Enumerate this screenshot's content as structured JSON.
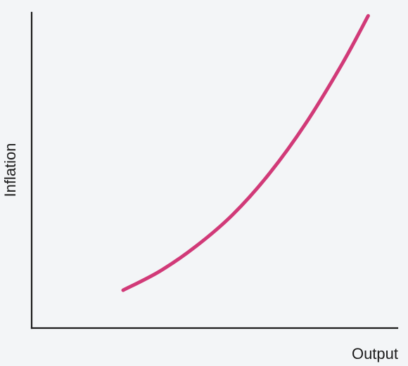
{
  "chart_data": {
    "type": "line",
    "title": "",
    "xlabel": "Output",
    "ylabel": "Inflation",
    "grid": false,
    "legend": "none",
    "xlim": [
      0,
      10
    ],
    "ylim": [
      0,
      10
    ],
    "ticks": "none",
    "series": [
      {
        "values": [
          {
            "x": 2.5,
            "y": 1.2
          },
          {
            "x": 3.5,
            "y": 1.8
          },
          {
            "x": 4.5,
            "y": 2.6
          },
          {
            "x": 5.5,
            "y": 3.6
          },
          {
            "x": 6.5,
            "y": 4.9
          },
          {
            "x": 7.5,
            "y": 6.5
          },
          {
            "x": 8.5,
            "y": 8.4
          },
          {
            "x": 9.2,
            "y": 9.9
          }
        ]
      }
    ],
    "colors": {
      "axis": "#1c1c1c",
      "curve": "#d13a78",
      "background": "#f3f5f7"
    }
  }
}
